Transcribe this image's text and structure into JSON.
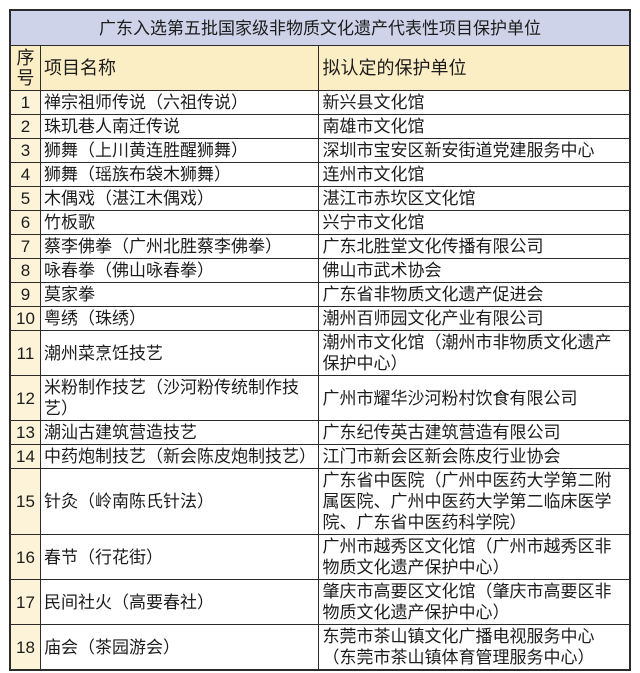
{
  "title": "广东入选第五批国家级非物质文化遗产代表性项目保护单位",
  "columns": {
    "index": "序号",
    "name": "项目名称",
    "unit": "拟认定的保护单位"
  },
  "rows": [
    {
      "index": "1",
      "name": "禅宗祖师传说（六祖传说）",
      "unit": "新兴县文化馆"
    },
    {
      "index": "2",
      "name": "珠玑巷人南迁传说",
      "unit": "南雄市文化馆"
    },
    {
      "index": "3",
      "name": "狮舞（上川黄连胜醒狮舞）",
      "unit": "深圳市宝安区新安街道党建服务中心"
    },
    {
      "index": "4",
      "name": "狮舞（瑶族布袋木狮舞）",
      "unit": "连州市文化馆"
    },
    {
      "index": "5",
      "name": "木偶戏（湛江木偶戏）",
      "unit": "湛江市赤坎区文化馆"
    },
    {
      "index": "6",
      "name": "竹板歌",
      "unit": "兴宁市文化馆"
    },
    {
      "index": "7",
      "name": "蔡李佛拳（广州北胜蔡李佛拳）",
      "unit": "广东北胜堂文化传播有限公司"
    },
    {
      "index": "8",
      "name": "咏春拳（佛山咏春拳）",
      "unit": "佛山市武术协会"
    },
    {
      "index": "9",
      "name": "莫家拳",
      "unit": "广东省非物质文化遗产促进会"
    },
    {
      "index": "10",
      "name": "粤绣（珠绣）",
      "unit": "潮州百师园文化产业有限公司"
    },
    {
      "index": "11",
      "name": "潮州菜烹饪技艺",
      "unit": "潮州市文化馆（潮州市非物质文化遗产保护中心）"
    },
    {
      "index": "12",
      "name": "米粉制作技艺（沙河粉传统制作技艺）",
      "unit": "广州市耀华沙河粉村饮食有限公司"
    },
    {
      "index": "13",
      "name": "潮汕古建筑营造技艺",
      "unit": "广东纪传英古建筑营造有限公司"
    },
    {
      "index": "14",
      "name": "中药炮制技艺（新会陈皮炮制技艺）",
      "unit": "江门市新会区新会陈皮行业协会"
    },
    {
      "index": "15",
      "name": "针灸（岭南陈氏针法）",
      "unit": "广东省中医院（广州中医药大学第二附属医院、广州中医药大学第二临床医学院、广东省中医药科学院）"
    },
    {
      "index": "16",
      "name": "春节（行花街）",
      "unit": "广州市越秀区文化馆（广州市越秀区非物质文化遗产保护中心）"
    },
    {
      "index": "17",
      "name": "民间社火（高要春社）",
      "unit": "肇庆市高要区文化馆（肇庆市高要区非物质文化遗产保护中心）"
    },
    {
      "index": "18",
      "name": "庙会（茶园游会）",
      "unit": "东莞市茶山镇文化广播电视服务中心（东莞市茶山镇体育管理服务中心）"
    }
  ],
  "colors": {
    "title_background": "#CED3E9",
    "header_background": "#FBEEC5",
    "index_column_background": "#FCF3D8",
    "border": "#2B2B2B",
    "text": "#1C1C1C",
    "page_background": "#FFFFFF"
  }
}
